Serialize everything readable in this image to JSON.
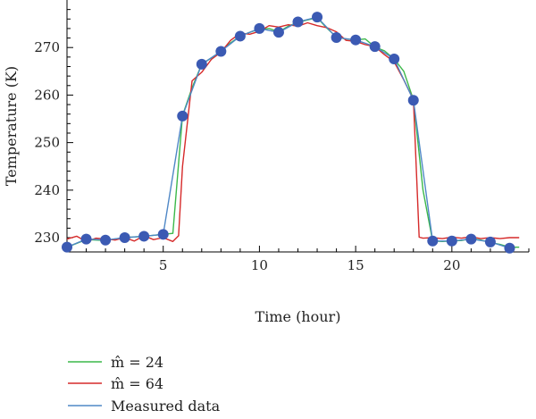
{
  "chart_data": {
    "type": "line",
    "xlabel": "Time (hour)",
    "ylabel": "Temperature (K)",
    "xlim": [
      0,
      24
    ],
    "ylim": [
      227,
      280
    ],
    "x_ticks": [
      5,
      10,
      15,
      20
    ],
    "y_ticks": [
      230,
      240,
      250,
      260,
      270
    ],
    "grid": false,
    "legend_position": "bottom-left",
    "series": [
      {
        "name": "m̂ = 24",
        "style": "line",
        "color": "#3cb84a",
        "x": [
          0,
          1,
          2,
          3,
          4,
          5,
          5.5,
          6,
          6.5,
          7,
          7.5,
          8,
          8.5,
          9,
          9.5,
          10,
          10.5,
          11,
          11.5,
          12,
          12.5,
          13,
          13.5,
          14,
          14.5,
          15,
          15.5,
          16,
          16.5,
          17,
          17.5,
          18,
          18.5,
          19,
          19.5,
          20,
          20.5,
          21,
          21.5,
          22,
          22.5,
          23,
          23.5
        ],
        "y": [
          228,
          229.6,
          229.4,
          230,
          230.3,
          230.7,
          230.9,
          255.7,
          261.5,
          266.5,
          267.8,
          269.2,
          271,
          272.4,
          273.2,
          273.9,
          274,
          273.3,
          274.5,
          275.3,
          275.8,
          276.3,
          274.1,
          272.2,
          271.8,
          271.6,
          271.8,
          270.1,
          269.3,
          267.6,
          265,
          259,
          240,
          229.3,
          229.2,
          229.3,
          229.4,
          229.8,
          229.5,
          229,
          228.6,
          228,
          228
        ]
      },
      {
        "name": "m̂ = 64",
        "style": "line",
        "color": "#d62a2a",
        "x": [
          0,
          0.5,
          1,
          1.5,
          2,
          2.5,
          3,
          3.5,
          4,
          4.5,
          5,
          5.5,
          5.8,
          6,
          6.5,
          7,
          7.5,
          8,
          8.5,
          9,
          9.5,
          10,
          10.5,
          11,
          11.5,
          12,
          12.5,
          13,
          13.5,
          14,
          14.5,
          15,
          15.5,
          16,
          16.5,
          17,
          17.5,
          18,
          18.3,
          18.5,
          19,
          19.5,
          20,
          20.5,
          21,
          21.5,
          22,
          22.5,
          23,
          23.5
        ],
        "y": [
          229.7,
          230.3,
          229.2,
          229.9,
          229.7,
          229.5,
          230,
          229.3,
          230.4,
          229.6,
          230,
          229.2,
          230.4,
          245,
          263,
          264.8,
          267.5,
          269,
          271.5,
          273,
          272.8,
          273.4,
          274.6,
          274.3,
          274.8,
          274.5,
          275.2,
          274.6,
          274.2,
          273.3,
          271.5,
          271.3,
          270.6,
          270.2,
          268.5,
          267,
          263.2,
          259,
          230.1,
          229.9,
          230,
          229.8,
          230.1,
          229.9,
          230.2,
          229.8,
          230,
          229.8,
          230,
          230
        ]
      },
      {
        "name": "Measured data",
        "style": "line+markers",
        "color": "#4f88c6",
        "marker_color": "#3b5ab3",
        "x": [
          0,
          1,
          2,
          3,
          4,
          5,
          6,
          7,
          8,
          9,
          10,
          11,
          12,
          13,
          14,
          15,
          16,
          17,
          18,
          19,
          20,
          21,
          22,
          23
        ],
        "y": [
          228,
          229.7,
          229.5,
          230,
          230.3,
          230.7,
          255.6,
          266.5,
          269.2,
          272.4,
          274,
          273.2,
          275.4,
          276.4,
          272.1,
          271.6,
          270.2,
          267.6,
          258.9,
          229.3,
          229.3,
          229.7,
          229.1,
          227.8
        ]
      }
    ]
  }
}
